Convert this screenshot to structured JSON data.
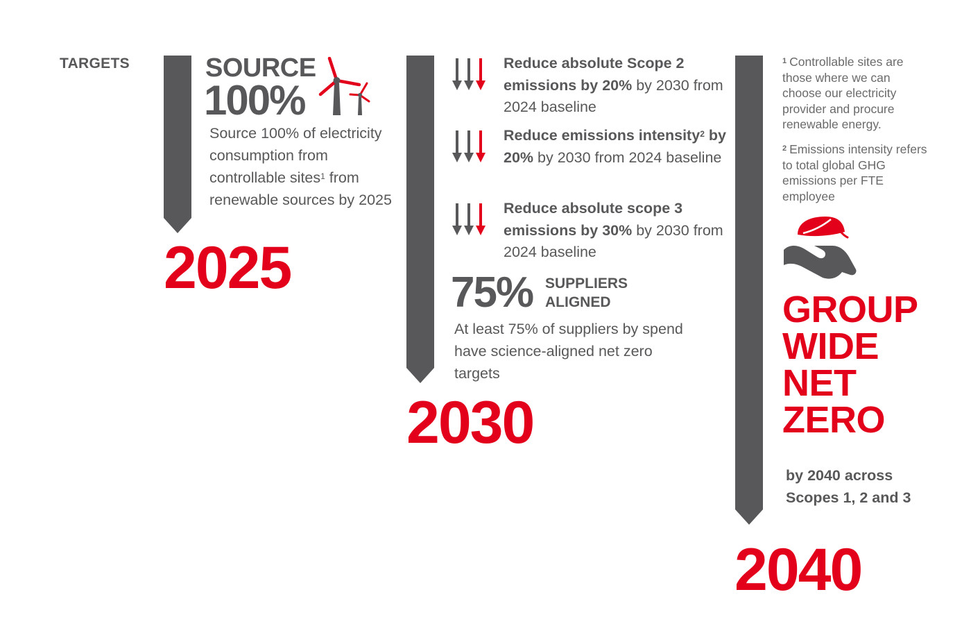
{
  "section_label": "TARGETS",
  "milestones": [
    {
      "year": "2025",
      "headline_line1": "SOURCE",
      "headline_line2": "100%",
      "icon": "wind-turbine-icon",
      "body_part1": "Source 100% of electricity consumption from controllable sites",
      "body_sup": "1",
      "body_part2": " from renewable sources by 2025"
    },
    {
      "year": "2030",
      "targets": [
        {
          "icon": "reduction-arrows-icon",
          "bold_part1": "Reduce absolute Scope 2 emissions by 20%",
          "bold_sup": "",
          "bold_part2": "",
          "rest": " by 2030 from 2024 baseline"
        },
        {
          "icon": "reduction-arrows-icon",
          "bold_part1": "Reduce emissions intensity",
          "bold_sup": "2",
          "bold_part2": " by 20%",
          "rest": " by 2030 from 2024 baseline"
        },
        {
          "icon": "reduction-arrows-icon",
          "bold_part1": "Reduce absolute scope 3 emissions by 30%",
          "bold_sup": "",
          "bold_part2": "",
          "rest": " by 2030 from 2024 baseline"
        }
      ],
      "suppliers_pct": "75%",
      "suppliers_label_line1": "SUPPLIERS",
      "suppliers_label_line2": "ALIGNED",
      "suppliers_body": "At least 75% of suppliers by spend have science-aligned net zero targets"
    },
    {
      "year": "2040",
      "footnotes": [
        {
          "num": "1",
          "text": "Controllable sites are those where we can choose our electricity provider and procure renewable energy."
        },
        {
          "num": "2",
          "text": "Emissions intensity refers to total global GHG emissions per FTE employee"
        }
      ],
      "icon": "hand-leaf-icon",
      "headline_lines": [
        "GROUP",
        "WIDE",
        "NET",
        "ZERO"
      ],
      "scope_text": "by 2040 across Scopes 1, 2 and 3"
    }
  ],
  "colors": {
    "accent_red": "#e2001a",
    "grey": "#58585a"
  }
}
